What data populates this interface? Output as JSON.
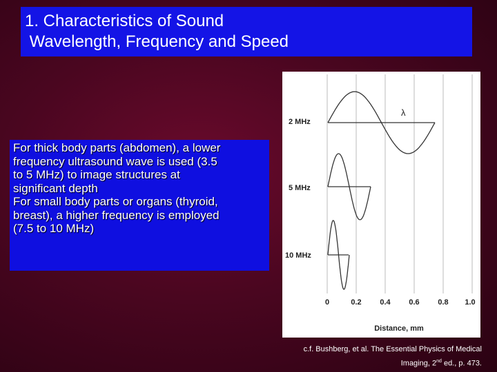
{
  "title": {
    "lines": [
      "1. Characteristics of Sound",
      " Wavelength, Frequency and Speed"
    ]
  },
  "body": {
    "lines": [
      "For thick body parts (abdomen), a lower",
      "frequency ultrasound wave is used (3.5",
      "to 5 MHz) to image structures at",
      "significant depth",
      "For small body parts or organs (thyroid,",
      "breast), a higher frequency is employed",
      "(7.5 to 10 MHz)"
    ]
  },
  "figure": {
    "wave_labels": [
      "2 MHz",
      "5 MHz",
      "10 MHz"
    ],
    "wavelength_symbol": "λ",
    "x_tick_labels": [
      "0",
      "0.2",
      "0.4",
      "0.6",
      "0.8",
      "1.0"
    ],
    "x_axis_label": "Distance, mm"
  },
  "citation": {
    "line1": "c.f. Bushberg, et al. The Essential Physics of Medical",
    "line2_start": "Imaging, 2",
    "line2_sup": "nd",
    "line2_end": " ed., p. 473."
  }
}
